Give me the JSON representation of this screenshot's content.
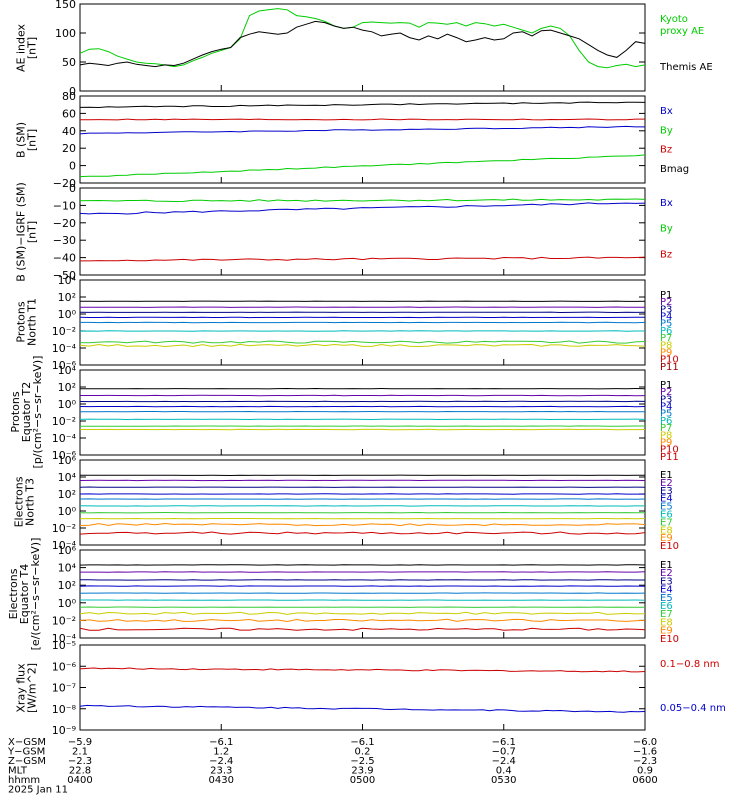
{
  "colors": {
    "black": "#000000",
    "green": "#00cc00",
    "blue": "#0000cc",
    "red": "#cc0000",
    "purple": "#6600aa",
    "navy": "#000088",
    "teal": "#0077cc",
    "cyan": "#00bbbb",
    "lime": "#33cc33",
    "yellow": "#cccc00",
    "orange": "#ff8800",
    "crimson": "#cc0000",
    "darkred": "#990000",
    "p11": "#cc0000"
  },
  "chart_data": [
    {
      "id": "ae",
      "type": "line",
      "ylabel": "AE index\n[nT]",
      "ylim": [
        0,
        150
      ],
      "yticks": [
        "0",
        "50",
        "100",
        "150"
      ],
      "x": [
        0,
        2,
        4,
        6,
        8,
        10,
        12,
        14,
        16,
        18,
        20,
        22,
        24,
        26,
        28,
        30,
        32,
        34,
        36,
        38,
        40,
        42,
        44,
        46,
        48,
        50,
        52,
        54,
        56,
        58,
        60,
        62,
        64,
        66,
        68,
        70,
        72,
        74,
        76,
        78,
        80,
        82,
        84,
        86,
        88,
        90,
        92,
        94,
        96,
        98,
        100,
        102,
        104,
        106,
        108,
        110,
        112,
        114,
        116,
        118,
        120
      ],
      "series": [
        {
          "name": "Kyoto\nproxy AE",
          "color": "green",
          "values": [
            65,
            72,
            73,
            68,
            60,
            55,
            50,
            48,
            47,
            45,
            42,
            45,
            52,
            58,
            65,
            70,
            75,
            90,
            130,
            138,
            140,
            142,
            140,
            130,
            128,
            125,
            120,
            112,
            108,
            110,
            118,
            119,
            118,
            117,
            118,
            117,
            110,
            118,
            117,
            115,
            118,
            112,
            118,
            116,
            112,
            115,
            110,
            105,
            100,
            108,
            112,
            108,
            95,
            70,
            50,
            42,
            40,
            44,
            46,
            42,
            45
          ]
        },
        {
          "name": "Themis AE",
          "color": "black",
          "values": [
            45,
            48,
            46,
            44,
            48,
            50,
            46,
            44,
            42,
            45,
            44,
            48,
            55,
            62,
            68,
            72,
            75,
            92,
            98,
            102,
            100,
            98,
            100,
            110,
            115,
            120,
            118,
            112,
            108,
            110,
            105,
            102,
            95,
            98,
            100,
            92,
            88,
            95,
            90,
            98,
            92,
            85,
            88,
            92,
            88,
            90,
            100,
            102,
            95,
            104,
            105,
            100,
            95,
            90,
            80,
            70,
            62,
            58,
            70,
            85,
            82
          ]
        }
      ]
    },
    {
      "id": "b",
      "type": "line",
      "ylabel": "B (SM)\n[nT]",
      "ylim": [
        -20,
        80
      ],
      "yticks": [
        "−20",
        "0",
        "20",
        "40",
        "60",
        "80"
      ],
      "series": [
        {
          "name": "Bx",
          "color": "blue",
          "values_start": 37,
          "values_end": 45
        },
        {
          "name": "By",
          "color": "green",
          "values_start": -13,
          "values_end": 12
        },
        {
          "name": "Bz",
          "color": "red",
          "values_start": 53,
          "values_end": 53
        },
        {
          "name": "Bmag",
          "color": "black",
          "values_start": 67,
          "values_end": 73
        }
      ]
    },
    {
      "id": "b_igrf",
      "type": "line",
      "ylabel": "B (SM)−IGRF (SM)\n[nT]",
      "ylim": [
        -50,
        10
      ],
      "yticks": [
        "−50",
        "−40",
        "−30",
        "−20",
        "−10",
        "0"
      ],
      "series": [
        {
          "name": "Bx",
          "color": "blue",
          "values_start": -8,
          "values_end": 0
        },
        {
          "name": "By",
          "color": "green",
          "values_start": 1,
          "values_end": 2
        },
        {
          "name": "Bz",
          "color": "red",
          "values_start": -40,
          "values_end": -38
        }
      ]
    },
    {
      "id": "protons_north_t1",
      "type": "line",
      "scale": "log",
      "ylabel": "Protons\nNorth T1",
      "ylim": [
        -6,
        4
      ],
      "yticks": [
        "10⁻⁶",
        "10⁻⁴",
        "10⁻²",
        "10⁰",
        "10²",
        "10⁴"
      ],
      "series": [
        {
          "name": "P1",
          "color": "black",
          "log10_value": 1.5
        },
        {
          "name": "P2",
          "color": "purple",
          "log10_value": 0.8
        },
        {
          "name": "P3",
          "color": "navy",
          "log10_value": 0.2
        },
        {
          "name": "P4",
          "color": "blue",
          "log10_value": -0.4
        },
        {
          "name": "P5",
          "color": "teal",
          "log10_value": -1.0
        },
        {
          "name": "P6",
          "color": "cyan",
          "log10_value": -2.0
        },
        {
          "name": "P7",
          "color": "lime",
          "log10_value": -3.3
        },
        {
          "name": "P8",
          "color": "yellow",
          "log10_value": -3.7
        },
        {
          "name": "P9",
          "color": "orange",
          "log10_value": -9
        },
        {
          "name": "P10",
          "color": "crimson",
          "log10_value": -9
        },
        {
          "name": "P11",
          "color": "darkred",
          "log10_value": -9
        }
      ]
    },
    {
      "id": "protons_equator_t2",
      "type": "line",
      "scale": "log",
      "ylabel": "Protons\nEquator T2\n[p/(cm²−s−sr−keV)]",
      "ylim": [
        -6,
        4
      ],
      "yticks": [
        "10⁻⁶",
        "10⁻⁴",
        "10⁻²",
        "10⁰",
        "10²",
        "10⁴"
      ],
      "series": [
        {
          "name": "P1",
          "color": "black",
          "log10_value": 1.8
        },
        {
          "name": "P2",
          "color": "purple",
          "log10_value": 1.0
        },
        {
          "name": "P3",
          "color": "navy",
          "log10_value": 0.3
        },
        {
          "name": "P4",
          "color": "blue",
          "log10_value": -0.3
        },
        {
          "name": "P5",
          "color": "teal",
          "log10_value": -0.9
        },
        {
          "name": "P6",
          "color": "cyan",
          "log10_value": -1.8
        },
        {
          "name": "P7",
          "color": "lime",
          "log10_value": -2.6
        },
        {
          "name": "P8",
          "color": "yellow",
          "log10_value": -3.0
        },
        {
          "name": "P9",
          "color": "orange",
          "log10_value": -9
        },
        {
          "name": "P10",
          "color": "crimson",
          "log10_value": -9
        },
        {
          "name": "P11",
          "color": "p11",
          "log10_value": -9
        }
      ]
    },
    {
      "id": "electrons_north_t3",
      "type": "line",
      "scale": "log",
      "ylabel": "Electrons\nNorth T3",
      "ylim": [
        -4,
        6
      ],
      "yticks": [
        "10⁻⁴",
        "10⁻²",
        "10⁰",
        "10²",
        "10⁴",
        "10⁶"
      ],
      "series": [
        {
          "name": "E1",
          "color": "black",
          "log10_value": 4.2
        },
        {
          "name": "E2",
          "color": "purple",
          "log10_value": 3.6
        },
        {
          "name": "E3",
          "color": "navy",
          "log10_value": 2.8
        },
        {
          "name": "E4",
          "color": "blue",
          "log10_value": 2.0
        },
        {
          "name": "E5",
          "color": "teal",
          "log10_value": 1.4
        },
        {
          "name": "E6",
          "color": "cyan",
          "log10_value": 0.6
        },
        {
          "name": "E7",
          "color": "lime",
          "log10_value": -0.2
        },
        {
          "name": "E8",
          "color": "yellow",
          "log10_value": -0.9
        },
        {
          "name": "E9",
          "color": "orange",
          "log10_value": -1.6
        },
        {
          "name": "E10",
          "color": "red",
          "log10_value": -2.6
        }
      ]
    },
    {
      "id": "electrons_equator_t4",
      "type": "line",
      "scale": "log",
      "ylabel": "Electrons\nEquator T4\n[e/(cm²−s−sr−keV)]",
      "ylim": [
        -4,
        6
      ],
      "yticks": [
        "10⁻⁴",
        "10⁻²",
        "10⁰",
        "10²",
        "10⁴",
        "10⁶"
      ],
      "series": [
        {
          "name": "E1",
          "color": "black",
          "log10_value": 4.3
        },
        {
          "name": "E2",
          "color": "purple",
          "log10_value": 3.5
        },
        {
          "name": "E3",
          "color": "navy",
          "log10_value": 2.6
        },
        {
          "name": "E4",
          "color": "blue",
          "log10_value": 1.9
        },
        {
          "name": "E5",
          "color": "teal",
          "log10_value": 1.1
        },
        {
          "name": "E6",
          "color": "cyan",
          "log10_value": 0.3
        },
        {
          "name": "E7",
          "color": "lime",
          "log10_value": -0.5
        },
        {
          "name": "E8",
          "color": "yellow",
          "log10_value": -1.2
        },
        {
          "name": "E9",
          "color": "orange",
          "log10_value": -2.0
        },
        {
          "name": "E10",
          "color": "red",
          "log10_value": -3.0
        }
      ]
    },
    {
      "id": "xray",
      "type": "line",
      "scale": "log",
      "ylabel": "Xray flux\n[W/m^2]",
      "ylim": [
        -9,
        -5
      ],
      "yticks": [
        "10⁻⁹",
        "10⁻⁸",
        "10⁻⁷",
        "10⁻⁶",
        "10⁻⁵"
      ],
      "series": [
        {
          "name": "0.1−0.8 nm",
          "color": "red",
          "log10_start": -6.1,
          "log10_end": -6.25
        },
        {
          "name": "0.05−0.4 nm",
          "color": "blue",
          "log10_start": -7.85,
          "log10_end": -8.15
        }
      ]
    }
  ],
  "x_axis": {
    "row_labels": [
      "X−GSM",
      "Y−GSM",
      "Z−GSM",
      "MLT",
      "hhmm",
      "2025 Jan 11"
    ],
    "columns": [
      {
        "values": [
          "−5.9",
          "2.1",
          "−2.3",
          "22.8",
          "0400"
        ]
      },
      {
        "values": [
          "−6.1",
          "1.2",
          "−2.4",
          "23.3",
          "0430"
        ]
      },
      {
        "values": [
          "−6.1",
          "0.2",
          "−2.5",
          "23.9",
          "0500"
        ]
      },
      {
        "values": [
          "−6.1",
          "−0.7",
          "−2.4",
          "0.4",
          "0530"
        ]
      },
      {
        "values": [
          "−6.0",
          "−1.6",
          "−2.3",
          "0.9",
          "0600"
        ]
      }
    ]
  }
}
